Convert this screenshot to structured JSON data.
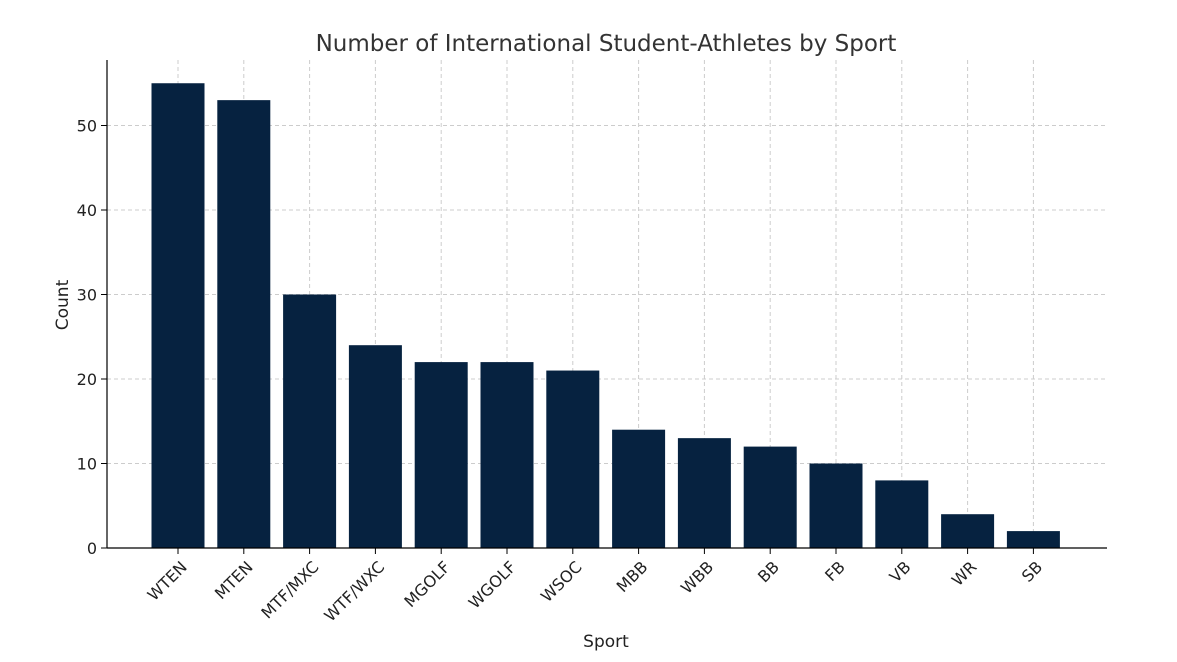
{
  "chart_data": {
    "type": "bar",
    "title": "Number of International Student-Athletes by Sport",
    "xlabel": "Sport",
    "ylabel": "Count",
    "categories": [
      "WTEN",
      "MTEN",
      "MTF/MXC",
      "WTF/WXC",
      "MGOLF",
      "WGOLF",
      "WSOC",
      "MBB",
      "WBB",
      "BB",
      "FB",
      "VB",
      "WR",
      "SB"
    ],
    "values": [
      55,
      53,
      30,
      24,
      22,
      22,
      21,
      14,
      13,
      12,
      10,
      8,
      4,
      2
    ],
    "ylim": [
      0,
      57.75
    ],
    "yticks": [
      0,
      10,
      20,
      30,
      40,
      50
    ],
    "grid": true,
    "bar_color": "#062240"
  }
}
